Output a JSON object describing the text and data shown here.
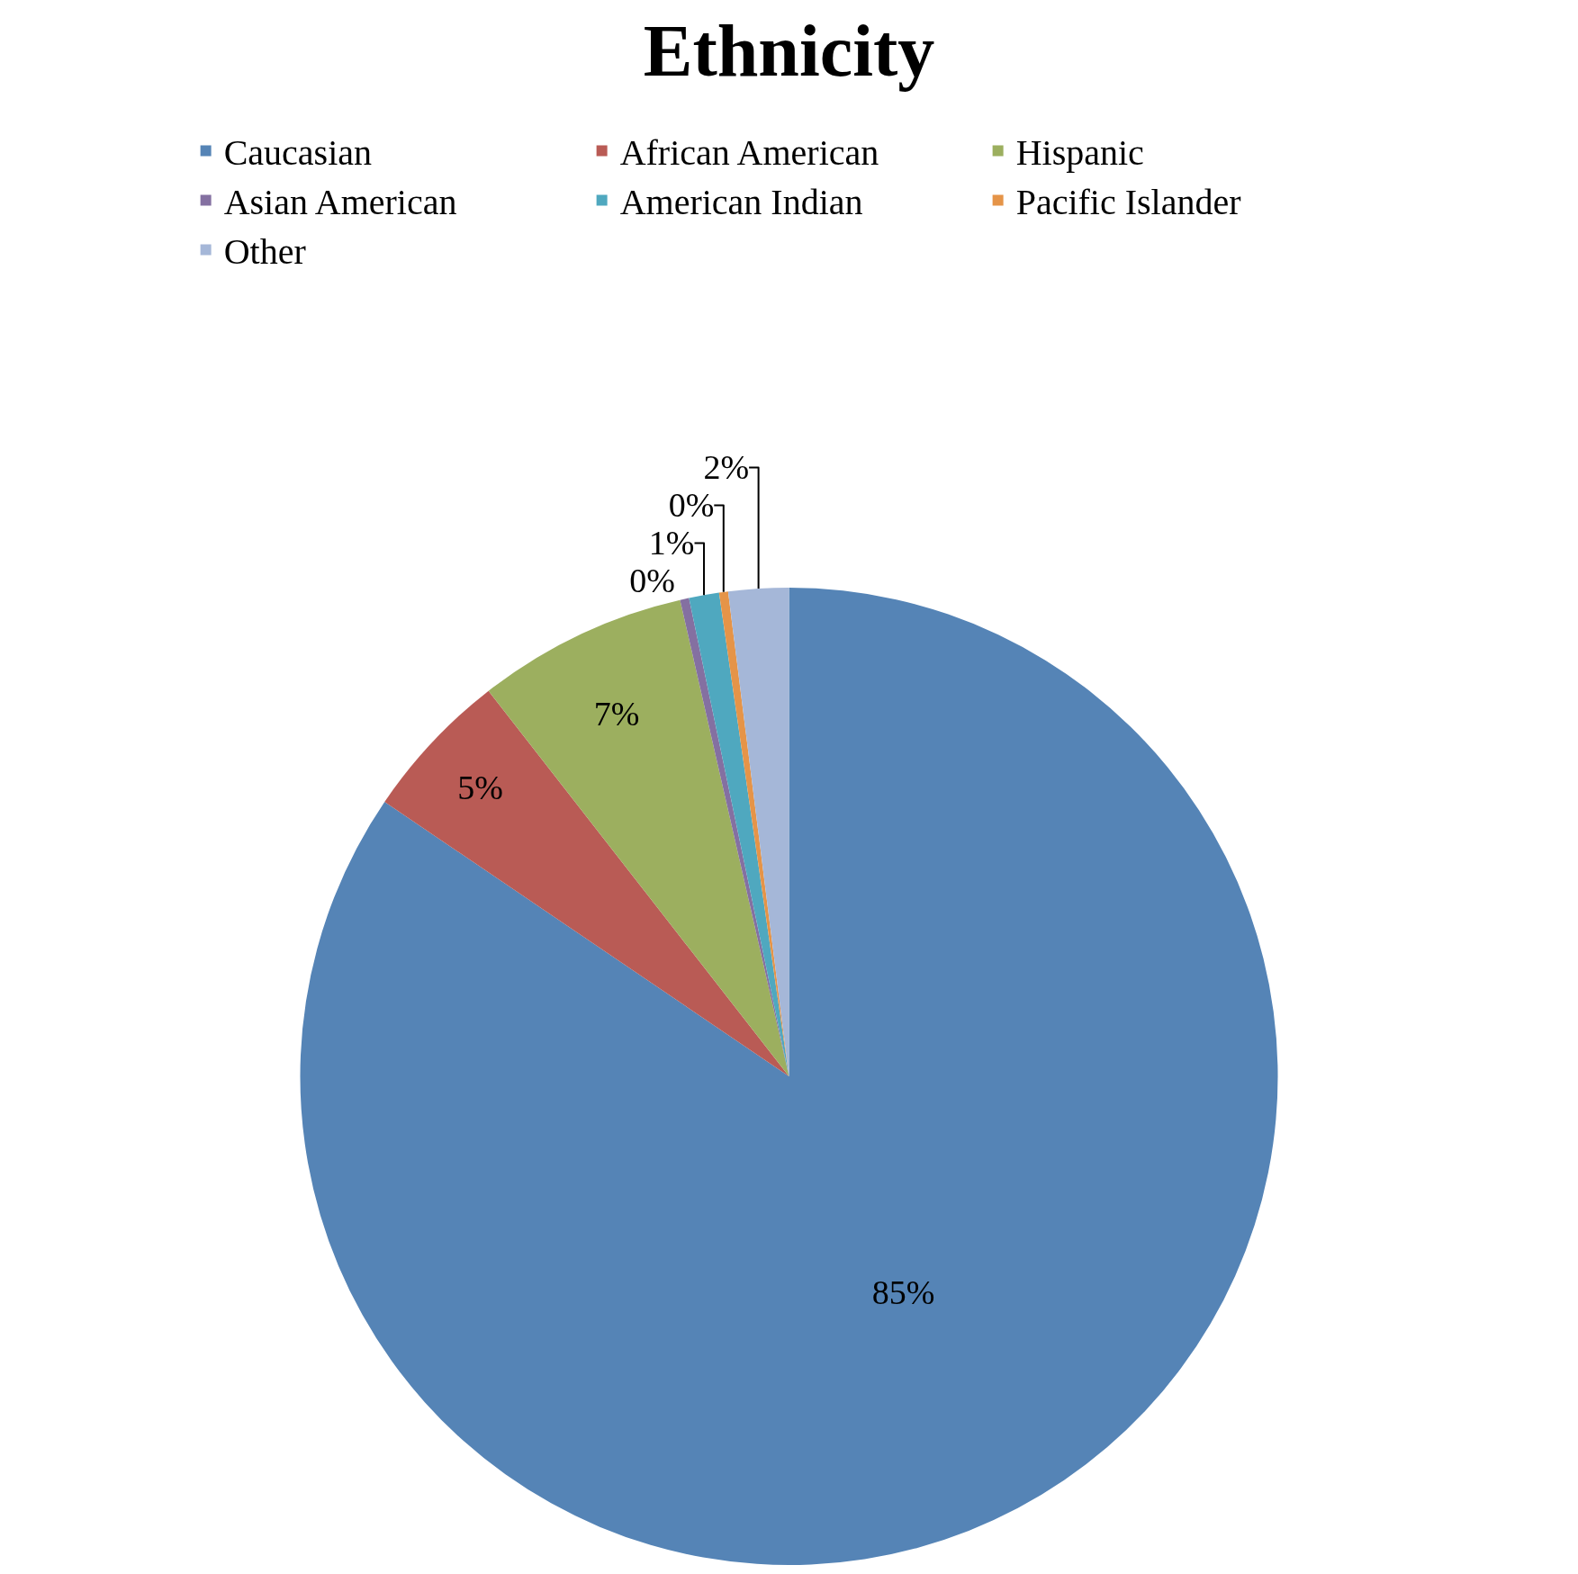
{
  "chart_data": {
    "type": "pie",
    "title": "Ethnicity",
    "categories": [
      "Caucasian",
      "African American",
      "Hispanic",
      "Asian American",
      "American Indian",
      "Pacific Islander",
      "Other"
    ],
    "values": [
      85,
      5,
      7,
      0.3,
      1,
      0.3,
      2
    ],
    "value_labels": [
      "85%",
      "5%",
      "7%",
      "0%",
      "1%",
      "0%",
      "2%"
    ],
    "colors": [
      "#5584b6",
      "#b95b55",
      "#9caf5f",
      "#8470a1",
      "#4fa8bf",
      "#e59448",
      "#a5b7d8"
    ],
    "legend": "top"
  }
}
